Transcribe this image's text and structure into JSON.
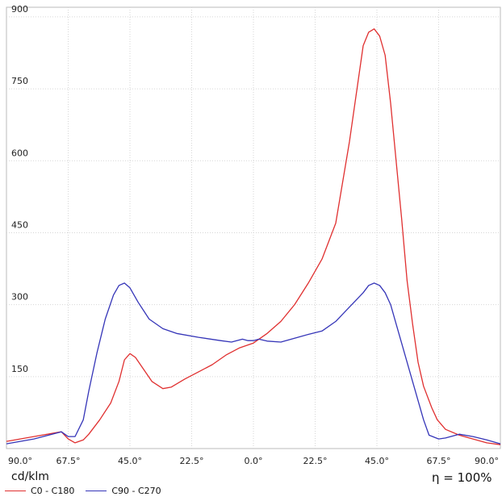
{
  "chart_data": {
    "type": "line",
    "x_tick_labels": [
      "90.0°",
      "67.5°",
      "45.0°",
      "22.5°",
      "0.0°",
      "22.5°",
      "45.0°",
      "67.5°",
      "90.0°"
    ],
    "x_tick_positions": [
      -90,
      -67.5,
      -45,
      -22.5,
      0,
      22.5,
      45,
      67.5,
      90
    ],
    "y_tick_labels": [
      "150",
      "300",
      "450",
      "600",
      "750",
      "900"
    ],
    "y_ticks": [
      150,
      300,
      450,
      600,
      750,
      900
    ],
    "xlim": [
      -90,
      90
    ],
    "ylim": [
      0,
      920
    ],
    "grid": true,
    "unit_label": "cd/klm",
    "efficiency_label": "η = 100%",
    "legend_position": "bottom-left",
    "series": [
      {
        "name": "C0 - C180",
        "color": "#e03030",
        "x": [
          -90,
          -80,
          -70,
          -67.5,
          -65,
          -62,
          -60,
          -56,
          -52,
          -49,
          -47,
          -45,
          -43,
          -40,
          -37,
          -33,
          -30,
          -25,
          -20,
          -15,
          -10,
          -5,
          0,
          5,
          10,
          15,
          20,
          25,
          30,
          35,
          40,
          42,
          44,
          46,
          48,
          50,
          52,
          54,
          56,
          58,
          60,
          62,
          65,
          67,
          70,
          75,
          80,
          85,
          90
        ],
        "values": [
          15,
          25,
          35,
          20,
          12,
          18,
          30,
          60,
          95,
          140,
          185,
          198,
          190,
          165,
          140,
          125,
          128,
          145,
          160,
          175,
          195,
          210,
          220,
          240,
          265,
          300,
          345,
          395,
          470,
          640,
          840,
          868,
          875,
          860,
          820,
          720,
          600,
          480,
          350,
          260,
          180,
          130,
          85,
          60,
          40,
          28,
          20,
          12,
          8
        ]
      },
      {
        "name": "C90 - C270",
        "color": "#3535b8",
        "x": [
          -90,
          -80,
          -70,
          -67.5,
          -65,
          -62,
          -60,
          -57,
          -54,
          -51,
          -49,
          -47,
          -45,
          -42,
          -38,
          -33,
          -28,
          -20,
          -12,
          -8,
          -4,
          -2,
          0,
          2,
          5,
          10,
          15,
          20,
          25,
          30,
          35,
          40,
          42,
          44,
          46,
          48,
          50,
          52,
          54,
          58,
          62,
          64,
          67.5,
          70,
          75,
          80,
          85,
          90
        ],
        "values": [
          10,
          20,
          35,
          25,
          25,
          60,
          120,
          200,
          270,
          320,
          340,
          345,
          335,
          305,
          270,
          250,
          240,
          232,
          225,
          222,
          228,
          225,
          225,
          228,
          224,
          222,
          230,
          238,
          245,
          265,
          295,
          325,
          340,
          345,
          340,
          325,
          300,
          260,
          220,
          140,
          60,
          28,
          20,
          22,
          30,
          25,
          18,
          10
        ]
      }
    ]
  }
}
